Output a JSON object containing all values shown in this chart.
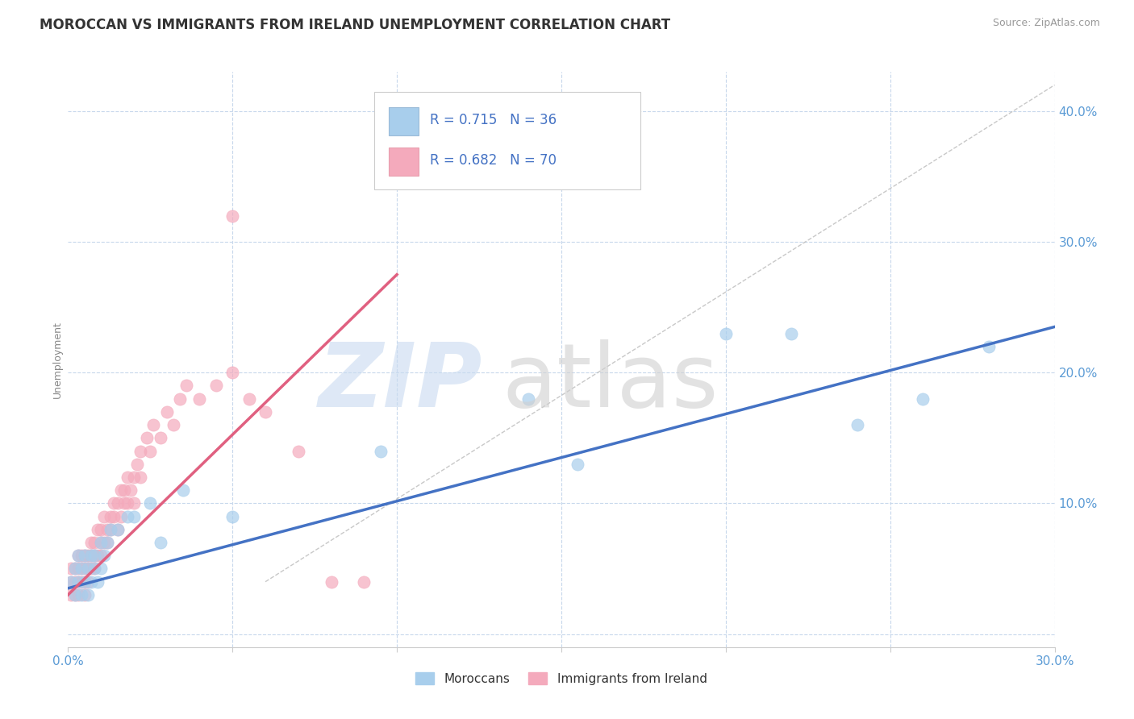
{
  "title": "MOROCCAN VS IMMIGRANTS FROM IRELAND UNEMPLOYMENT CORRELATION CHART",
  "source_text": "Source: ZipAtlas.com",
  "ylabel": "Unemployment",
  "xlim": [
    0.0,
    0.3
  ],
  "ylim": [
    -0.01,
    0.43
  ],
  "xticks": [
    0.0,
    0.05,
    0.1,
    0.15,
    0.2,
    0.25,
    0.3
  ],
  "xticklabels": [
    "0.0%",
    "",
    "",
    "",
    "",
    "",
    "30.0%"
  ],
  "ytick_positions": [
    0.0,
    0.1,
    0.2,
    0.3,
    0.4
  ],
  "yticklabels": [
    "",
    "10.0%",
    "20.0%",
    "30.0%",
    "40.0%"
  ],
  "blue_color": "#A8CEEC",
  "pink_color": "#F4AABC",
  "blue_line_color": "#4472C4",
  "pink_line_color": "#E06080",
  "ref_line_color": "#BBBBBB",
  "grid_color": "#C8D8EC",
  "background_color": "#FFFFFF",
  "legend_label_blue": "Moroccans",
  "legend_label_pink": "Immigrants from Ireland",
  "title_fontsize": 12,
  "axis_label_fontsize": 9,
  "tick_fontsize": 11,
  "source_fontsize": 9,
  "blue_scatter_x": [
    0.001,
    0.002,
    0.002,
    0.003,
    0.003,
    0.004,
    0.004,
    0.005,
    0.005,
    0.006,
    0.006,
    0.007,
    0.007,
    0.008,
    0.008,
    0.009,
    0.01,
    0.01,
    0.011,
    0.012,
    0.013,
    0.015,
    0.018,
    0.02,
    0.025,
    0.028,
    0.035,
    0.05,
    0.095,
    0.14,
    0.155,
    0.2,
    0.22,
    0.24,
    0.26,
    0.28
  ],
  "blue_scatter_y": [
    0.04,
    0.05,
    0.03,
    0.06,
    0.04,
    0.05,
    0.03,
    0.06,
    0.04,
    0.05,
    0.03,
    0.06,
    0.04,
    0.05,
    0.06,
    0.04,
    0.05,
    0.07,
    0.06,
    0.07,
    0.08,
    0.08,
    0.09,
    0.09,
    0.1,
    0.07,
    0.11,
    0.09,
    0.14,
    0.18,
    0.13,
    0.23,
    0.23,
    0.16,
    0.18,
    0.22
  ],
  "pink_scatter_x": [
    0.001,
    0.001,
    0.001,
    0.002,
    0.002,
    0.002,
    0.003,
    0.003,
    0.003,
    0.003,
    0.004,
    0.004,
    0.004,
    0.005,
    0.005,
    0.005,
    0.005,
    0.006,
    0.006,
    0.006,
    0.007,
    0.007,
    0.007,
    0.008,
    0.008,
    0.008,
    0.009,
    0.009,
    0.01,
    0.01,
    0.01,
    0.011,
    0.011,
    0.012,
    0.012,
    0.013,
    0.013,
    0.014,
    0.014,
    0.015,
    0.015,
    0.016,
    0.016,
    0.017,
    0.017,
    0.018,
    0.018,
    0.019,
    0.02,
    0.02,
    0.021,
    0.022,
    0.022,
    0.024,
    0.025,
    0.026,
    0.028,
    0.03,
    0.032,
    0.034,
    0.036,
    0.04,
    0.045,
    0.05,
    0.055,
    0.06,
    0.07,
    0.08,
    0.09,
    0.05
  ],
  "pink_scatter_y": [
    0.03,
    0.05,
    0.04,
    0.04,
    0.05,
    0.03,
    0.05,
    0.04,
    0.06,
    0.03,
    0.05,
    0.04,
    0.06,
    0.05,
    0.04,
    0.06,
    0.03,
    0.06,
    0.05,
    0.04,
    0.06,
    0.05,
    0.07,
    0.06,
    0.05,
    0.07,
    0.06,
    0.08,
    0.07,
    0.06,
    0.08,
    0.07,
    0.09,
    0.08,
    0.07,
    0.09,
    0.08,
    0.1,
    0.09,
    0.1,
    0.08,
    0.11,
    0.09,
    0.11,
    0.1,
    0.12,
    0.1,
    0.11,
    0.12,
    0.1,
    0.13,
    0.14,
    0.12,
    0.15,
    0.14,
    0.16,
    0.15,
    0.17,
    0.16,
    0.18,
    0.19,
    0.18,
    0.19,
    0.2,
    0.18,
    0.17,
    0.14,
    0.04,
    0.04,
    0.32
  ],
  "blue_line_x": [
    0.0,
    0.3
  ],
  "blue_line_y": [
    0.035,
    0.235
  ],
  "pink_line_x": [
    0.0,
    0.1
  ],
  "pink_line_y": [
    0.03,
    0.275
  ],
  "ref_line_x": [
    0.06,
    0.3
  ],
  "ref_line_y": [
    0.04,
    0.42
  ]
}
